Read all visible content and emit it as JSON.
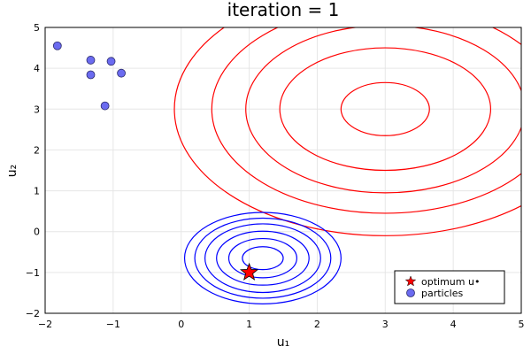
{
  "chart_data": {
    "type": "scatter",
    "title": "iteration = 1",
    "xlabel": "u₁",
    "ylabel": "u₂",
    "xlim": [
      -2,
      5
    ],
    "ylim": [
      -2,
      5
    ],
    "xticks": [
      -2,
      -1,
      0,
      1,
      2,
      3,
      4,
      5
    ],
    "yticks": [
      -2,
      -1,
      0,
      1,
      2,
      3,
      4,
      5
    ],
    "xtick_labels": [
      "−2",
      "−1",
      "0",
      "1",
      "2",
      "3",
      "4",
      "5"
    ],
    "ytick_labels": [
      "−2",
      "−1",
      "0",
      "1",
      "2",
      "3",
      "4",
      "5"
    ],
    "grid": true,
    "legend_position": "bottom-right",
    "series": [
      {
        "name": "optimum u•",
        "marker": "star",
        "color": "#ff0000",
        "points": [
          [
            1.0,
            -1.0
          ]
        ]
      },
      {
        "name": "particles",
        "marker": "circle",
        "color": "#6b6bf0",
        "points": [
          [
            -1.82,
            4.55
          ],
          [
            -1.33,
            4.2
          ],
          [
            -1.03,
            4.17
          ],
          [
            -0.88,
            3.88
          ],
          [
            -1.33,
            3.84
          ],
          [
            -1.12,
            3.08
          ]
        ]
      }
    ],
    "contours": [
      {
        "name": "red-contours",
        "color": "#ff0000",
        "center": [
          3.0,
          3.0
        ],
        "radii": [
          [
            0.65,
            0.65
          ],
          [
            1.55,
            1.5
          ],
          [
            2.05,
            2.05
          ],
          [
            2.55,
            2.55
          ],
          [
            3.1,
            3.1
          ]
        ]
      },
      {
        "name": "blue-contours",
        "color": "#0000ff",
        "center": [
          1.2,
          -0.65
        ],
        "radii": [
          [
            0.3,
            0.28
          ],
          [
            0.5,
            0.48
          ],
          [
            0.68,
            0.66
          ],
          [
            0.85,
            0.84
          ],
          [
            1.0,
            0.98
          ],
          [
            1.15,
            1.12
          ]
        ]
      }
    ]
  }
}
